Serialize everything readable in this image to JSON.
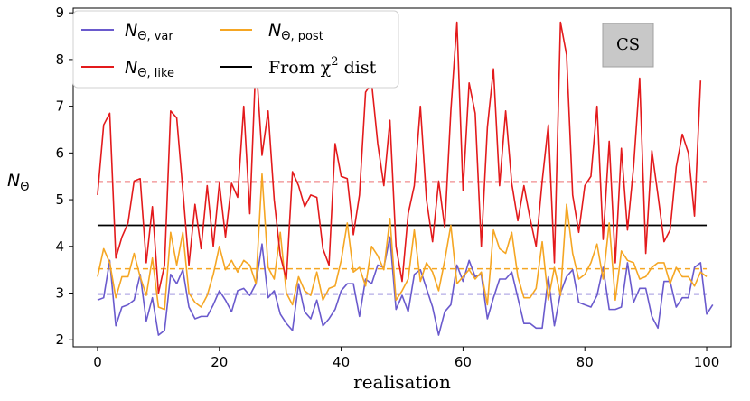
{
  "chart_data": {
    "type": "line",
    "title": "",
    "xlabel": "realisation",
    "ylabel": "N_Θ",
    "ylabel_parts": {
      "main": "N",
      "sub": "Θ"
    },
    "xlim": [
      -4,
      104
    ],
    "ylim": [
      1.85,
      9.1
    ],
    "xticks": [
      0,
      20,
      40,
      60,
      80,
      100
    ],
    "yticks": [
      2,
      3,
      4,
      5,
      6,
      7,
      8,
      9
    ],
    "grid": false,
    "legend": "top-left",
    "annotation": "CS",
    "series": [
      {
        "name": "N_Θ,var",
        "label_main": "N",
        "label_sub": "Θ, var",
        "color": "#6a5acd",
        "style": "solid",
        "mean": 2.98,
        "values": [
          2.85,
          2.9,
          3.7,
          2.3,
          2.7,
          2.75,
          2.85,
          3.4,
          2.4,
          2.9,
          2.1,
          2.2,
          3.4,
          3.2,
          3.5,
          2.7,
          2.45,
          2.5,
          2.5,
          2.75,
          3.05,
          2.85,
          2.6,
          3.05,
          3.1,
          2.95,
          3.2,
          4.05,
          2.9,
          3.05,
          2.55,
          2.35,
          2.2,
          3.2,
          2.6,
          2.45,
          2.85,
          2.3,
          2.45,
          2.65,
          3.05,
          3.2,
          3.2,
          2.5,
          3.3,
          3.2,
          3.6,
          3.55,
          4.2,
          2.65,
          2.95,
          2.6,
          3.4,
          3.5,
          3.1,
          2.7,
          2.1,
          2.6,
          2.75,
          3.6,
          3.25,
          3.7,
          3.35,
          3.4,
          2.45,
          2.9,
          3.3,
          3.3,
          3.45,
          2.9,
          2.35,
          2.35,
          2.25,
          2.25,
          3.35,
          2.3,
          3.0,
          3.35,
          3.5,
          2.8,
          2.75,
          2.7,
          2.95,
          3.55,
          2.65,
          2.65,
          2.7,
          3.65,
          2.8,
          3.1,
          3.1,
          2.5,
          2.25,
          3.25,
          3.25,
          2.7,
          2.9,
          2.9,
          3.55,
          3.65,
          2.55,
          2.75
        ]
      },
      {
        "name": "N_Θ,like",
        "label_main": "N",
        "label_sub": "Θ, like",
        "color": "#e31a1c",
        "style": "solid",
        "mean": 5.38,
        "values": [
          5.1,
          6.6,
          6.85,
          3.75,
          4.2,
          4.5,
          5.4,
          5.45,
          3.65,
          4.85,
          3.0,
          3.6,
          6.9,
          6.75,
          5.2,
          3.6,
          4.9,
          3.95,
          5.3,
          4.0,
          5.35,
          4.2,
          5.35,
          5.05,
          7.0,
          4.7,
          8.0,
          5.95,
          6.9,
          5.0,
          3.8,
          3.3,
          5.6,
          5.3,
          4.85,
          5.1,
          5.05,
          3.95,
          3.6,
          6.2,
          5.5,
          5.45,
          4.25,
          5.1,
          7.3,
          7.5,
          6.2,
          5.3,
          6.7,
          4.0,
          3.25,
          4.7,
          5.3,
          7.0,
          5.0,
          4.1,
          5.4,
          4.4,
          6.9,
          8.8,
          5.2,
          7.5,
          6.85,
          4.0,
          6.55,
          7.8,
          5.3,
          6.9,
          5.35,
          4.55,
          5.3,
          4.6,
          4.0,
          5.4,
          6.6,
          3.65,
          8.8,
          8.1,
          5.1,
          4.3,
          5.3,
          5.5,
          7.0,
          4.15,
          6.25,
          3.65,
          6.1,
          4.35,
          5.7,
          7.6,
          3.85,
          6.05,
          5.1,
          4.1,
          4.35,
          5.7,
          6.4,
          6.0,
          4.65,
          7.55
        ]
      },
      {
        "name": "N_Θ,post",
        "label_main": "N",
        "label_sub": "Θ, post",
        "color": "#f5a623",
        "style": "solid",
        "mean": 3.52,
        "values": [
          3.35,
          3.95,
          3.65,
          2.9,
          3.35,
          3.35,
          3.85,
          3.35,
          2.95,
          3.75,
          2.7,
          2.65,
          4.3,
          3.6,
          4.3,
          3.0,
          2.8,
          2.7,
          2.95,
          3.4,
          4.0,
          3.5,
          3.7,
          3.45,
          3.7,
          3.6,
          3.2,
          5.55,
          3.55,
          3.3,
          4.3,
          3.0,
          2.75,
          3.35,
          3.05,
          2.95,
          3.45,
          2.85,
          3.1,
          3.15,
          3.7,
          4.5,
          3.45,
          3.55,
          3.15,
          4.0,
          3.8,
          3.5,
          4.6,
          2.85,
          3.05,
          3.3,
          4.35,
          3.25,
          3.65,
          3.45,
          3.05,
          3.7,
          4.45,
          3.2,
          3.35,
          3.5,
          3.3,
          3.45,
          2.75,
          4.35,
          3.95,
          3.85,
          4.3,
          3.35,
          2.9,
          2.9,
          3.1,
          4.1,
          2.85,
          3.55,
          2.95,
          4.9,
          3.85,
          3.3,
          3.4,
          3.65,
          4.05,
          3.3,
          4.5,
          2.85,
          3.9,
          3.7,
          3.65,
          3.3,
          3.35,
          3.55,
          3.65,
          3.65,
          3.2,
          3.55,
          3.35,
          3.35,
          3.15,
          3.45,
          3.35
        ]
      },
      {
        "name": "From χ² dist",
        "label_main": "From χ",
        "label_sup": "2",
        "label_tail": " dist",
        "color": "#000000",
        "style": "solid",
        "value": 4.45
      }
    ]
  }
}
